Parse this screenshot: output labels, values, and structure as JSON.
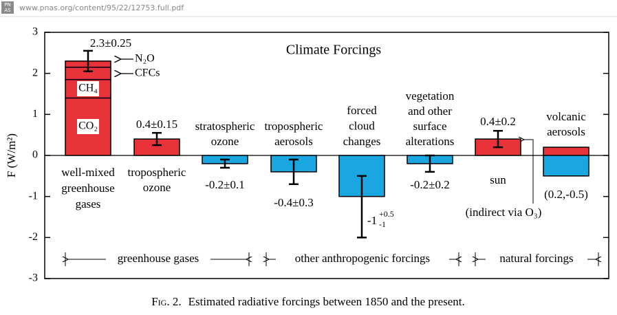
{
  "header": {
    "icon": [
      "PN",
      "AS"
    ],
    "url": "www.pnas.org/content/95/22/12753.full.pdf"
  },
  "chart_data": {
    "type": "bar",
    "title": "Climate Forcings",
    "ylabel": "F (W/m²)",
    "ylim": [
      -3,
      3
    ],
    "yticks": [
      -3,
      -2,
      -1,
      0,
      1,
      2,
      3
    ],
    "bars": [
      {
        "category": [
          "well-mixed",
          "greenhouse",
          "gases"
        ],
        "parts": [
          {
            "name": "CO₂",
            "value": 1.4,
            "color": "#e8333b"
          },
          {
            "name": "CH₄",
            "value": 0.45,
            "color": "#e8333b"
          },
          {
            "name": "CFCs",
            "value": 0.3,
            "color": "#e8333b"
          },
          {
            "name": "N₂O",
            "value": 0.15,
            "color": "#e8333b"
          }
        ],
        "error": 0.25,
        "value_label": "2.3±0.25"
      },
      {
        "category": [
          "tropospheric",
          "ozone"
        ],
        "parts": [
          {
            "value": 0.4,
            "color": "#e8333b"
          }
        ],
        "error": 0.15,
        "value_label": "0.4±0.15"
      },
      {
        "category": [
          "stratospheric",
          "ozone"
        ],
        "parts": [
          {
            "value": -0.2,
            "color": "#1aa6e0"
          }
        ],
        "error": 0.1,
        "value_label": "-0.2±0.1"
      },
      {
        "category": [
          "tropospheric",
          "aerosols"
        ],
        "parts": [
          {
            "value": -0.4,
            "color": "#1aa6e0"
          }
        ],
        "error": 0.3,
        "value_label": "-0.4±0.3"
      },
      {
        "category": [
          "forced",
          "cloud",
          "changes"
        ],
        "parts": [
          {
            "value": -1,
            "color": "#1aa6e0"
          }
        ],
        "error": {
          "minus": 1,
          "plus": 0.5
        },
        "value_label": {
          "base": "-1",
          "upper": "+0.5",
          "lower": "-1"
        }
      },
      {
        "category": [
          "vegetation",
          "and other",
          "surface",
          "alterations"
        ],
        "parts": [
          {
            "value": -0.2,
            "color": "#1aa6e0"
          }
        ],
        "error": 0.2,
        "value_label": "-0.2±0.2"
      },
      {
        "category": [
          "sun"
        ],
        "parts": [
          {
            "value": 0.4,
            "color": "#e8333b"
          }
        ],
        "error": 0.2,
        "value_label": "0.4±0.2",
        "note": "(indirect via O₃)"
      },
      {
        "category": [
          "volcanic",
          "aerosols"
        ],
        "parts": [
          {
            "value": 0.2,
            "color": "#e8333b"
          },
          {
            "value": -0.5,
            "color": "#1aa6e0"
          }
        ],
        "value_label": "(0.2,-0.5)"
      }
    ],
    "groups": [
      "greenhouse gases",
      "other anthropogenic forcings",
      "natural forcings"
    ],
    "caption": {
      "label": "Fig. 2.",
      "text": "Estimated radiative forcings between 1850 and the present."
    }
  }
}
